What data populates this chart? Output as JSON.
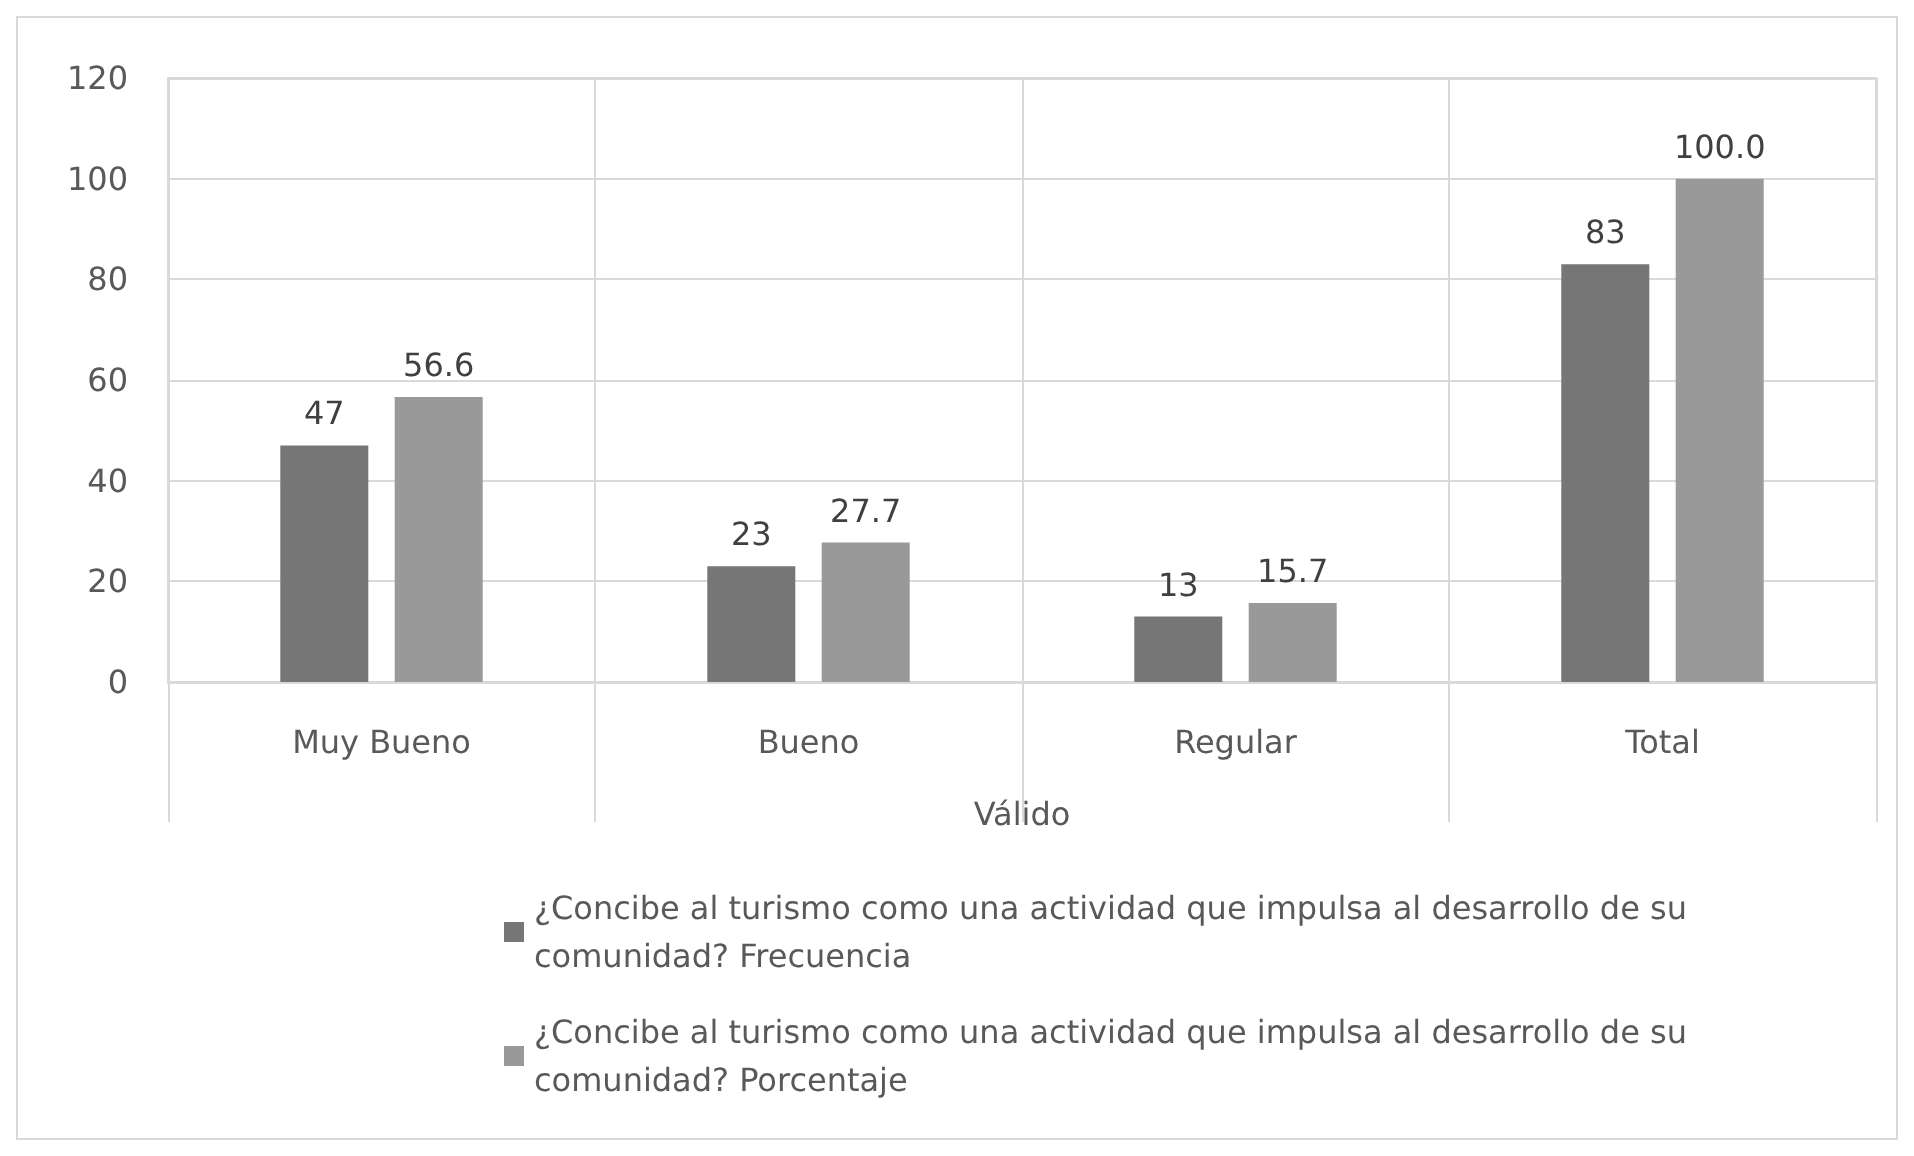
{
  "chart_data": {
    "type": "bar",
    "xlabel": "Válido",
    "categories": [
      "Muy Bueno",
      "Bueno",
      "Regular",
      "Total"
    ],
    "series": [
      {
        "name": "¿Concibe al turismo como una actividad que impulsa al desarrollo de su comunidad? Frecuencia",
        "color": "#767676",
        "values": [
          47,
          23,
          13,
          83
        ],
        "value_labels": [
          "47",
          "23",
          "13",
          "83"
        ]
      },
      {
        "name": "¿Concibe al turismo como una actividad que impulsa al desarrollo de su comunidad? Porcentaje",
        "color": "#999999",
        "values": [
          56.6,
          27.7,
          15.7,
          100.0
        ],
        "value_labels": [
          "56.6",
          "27.7",
          "15.7",
          "100.0"
        ]
      }
    ],
    "ylim": [
      0,
      120
    ],
    "yticks": [
      0,
      20,
      40,
      60,
      80,
      100,
      120
    ],
    "grid": true,
    "legend": "bottom"
  }
}
